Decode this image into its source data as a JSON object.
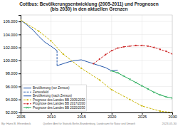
{
  "chart_data": {
    "type": "line",
    "title": "Cottbus: Bevölkerungsentwicklung (2005-2011) und Prognosen\n(bis 2030) in den aktuellen Grenzen",
    "annotations": [
      "By: Hans B. Ehrenbeck",
      "Quellen: Amt für Statistik Berlin-Brandenburg, Landesamt für Natur und Umwelt",
      "2023-05-30"
    ],
    "xlim": [
      2005,
      2030
    ],
    "xticks": [
      2005,
      2010,
      2015,
      2020,
      2025,
      2030
    ],
    "ylim": [
      92000,
      107000
    ],
    "yticks": [
      {
        "value": 92000,
        "label": "92.000"
      },
      {
        "value": 94000,
        "label": "94.000"
      },
      {
        "value": 96000,
        "label": "96.000"
      },
      {
        "value": 98000,
        "label": "98.000"
      },
      {
        "value": 100000,
        "label": "100.000"
      },
      {
        "value": 102000,
        "label": "102.000"
      },
      {
        "value": 104000,
        "label": "104.000"
      },
      {
        "value": 106000,
        "label": "106.000"
      }
    ],
    "grid": true,
    "legend": "lower left",
    "series": [
      {
        "name": "Bevölkerung (vor Zensus)",
        "color": "#2255aa",
        "line_style": "solid",
        "x": [
          2005,
          2006,
          2007,
          2008,
          2009,
          2010,
          2011
        ],
        "values": [
          106200,
          105500,
          104700,
          103700,
          102800,
          102200,
          101500
        ]
      },
      {
        "name": "Zensusfeld",
        "color": "#2255aa",
        "line_style": "dashed",
        "x": [
          2011,
          2011
        ],
        "values": [
          101500,
          99200
        ]
      },
      {
        "name": "Bevölkerung (nach Zensus)",
        "color": "#2255aa",
        "line_style": "solid",
        "x": [
          2011,
          2012,
          2013,
          2014,
          2015,
          2016,
          2017,
          2018,
          2019,
          2020,
          2021
        ],
        "values": [
          99200,
          99500,
          99800,
          100000,
          100100,
          99800,
          99500,
          99200,
          98900,
          98400,
          98500
        ]
      },
      {
        "name": "Prognose des Landes BB 2005/2030",
        "color": "#c8b400",
        "line_style": "dashed",
        "marker": "circle",
        "x": [
          2005,
          2008,
          2010,
          2012,
          2015,
          2018,
          2020,
          2023,
          2025,
          2028,
          2030
        ],
        "values": [
          106200,
          104500,
          103000,
          101000,
          98800,
          97000,
          95500,
          94000,
          93000,
          92200,
          92000
        ]
      },
      {
        "name": "Prognose des Landes BB 2017/2030",
        "color": "#cc2222",
        "line_style": "dashed",
        "marker": "circle",
        "x": [
          2017,
          2018,
          2019,
          2020,
          2021,
          2022,
          2023,
          2024,
          2025,
          2026,
          2027,
          2028,
          2029,
          2030
        ],
        "values": [
          99500,
          100200,
          100900,
          101500,
          101900,
          102100,
          102200,
          102300,
          102300,
          102200,
          102000,
          101700,
          101400,
          101000
        ]
      },
      {
        "name": "Prognose des Landes BB 2020/2030",
        "color": "#22aa55",
        "line_style": "solid",
        "marker": "x",
        "x": [
          2020,
          2021,
          2022,
          2023,
          2024,
          2025,
          2026,
          2027,
          2028,
          2029,
          2030
        ],
        "values": [
          98400,
          98100,
          97600,
          97100,
          96600,
          96100,
          95600,
          95100,
          94700,
          94400,
          94200
        ]
      }
    ]
  }
}
